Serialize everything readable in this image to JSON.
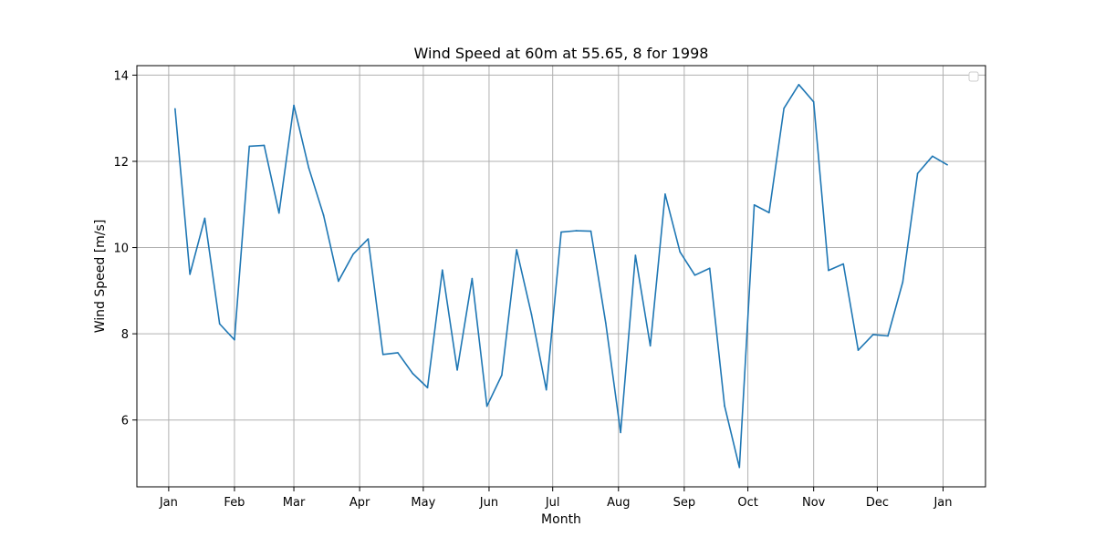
{
  "chart_data": {
    "type": "line",
    "title": "Wind Speed at 60m at 55.65, 8 for 1998",
    "xlabel": "Month",
    "ylabel": "Wind Speed [m/s]",
    "x_ticks": [
      {
        "date": "1998-01-01",
        "label": "Jan"
      },
      {
        "date": "1998-02-01",
        "label": "Feb"
      },
      {
        "date": "1998-03-01",
        "label": "Mar"
      },
      {
        "date": "1998-04-01",
        "label": "Apr"
      },
      {
        "date": "1998-05-01",
        "label": "May"
      },
      {
        "date": "1998-06-01",
        "label": "Jun"
      },
      {
        "date": "1998-07-01",
        "label": "Jul"
      },
      {
        "date": "1998-08-01",
        "label": "Aug"
      },
      {
        "date": "1998-09-01",
        "label": "Sep"
      },
      {
        "date": "1998-10-01",
        "label": "Oct"
      },
      {
        "date": "1998-11-01",
        "label": "Nov"
      },
      {
        "date": "1998-12-01",
        "label": "Dec"
      },
      {
        "date": "1999-01-01",
        "label": "Jan"
      }
    ],
    "y_ticks": [
      6,
      8,
      10,
      12,
      14
    ],
    "xlim": [
      "1997-12-17",
      "1999-01-21"
    ],
    "ylim": [
      4.45,
      14.22
    ],
    "grid": true,
    "legend": {
      "placement": "upper-right",
      "entries": []
    },
    "color": "#1f77b4",
    "series": [
      {
        "x": [
          "1998-01-04",
          "1998-01-11",
          "1998-01-18",
          "1998-01-25",
          "1998-02-01",
          "1998-02-08",
          "1998-02-15",
          "1998-02-22",
          "1998-03-01",
          "1998-03-08",
          "1998-03-15",
          "1998-03-22",
          "1998-03-29",
          "1998-04-05",
          "1998-04-12",
          "1998-04-19",
          "1998-04-26",
          "1998-05-03",
          "1998-05-10",
          "1998-05-17",
          "1998-05-24",
          "1998-05-31",
          "1998-06-07",
          "1998-06-14",
          "1998-06-21",
          "1998-06-28",
          "1998-07-05",
          "1998-07-12",
          "1998-07-19",
          "1998-07-26",
          "1998-08-02",
          "1998-08-09",
          "1998-08-16",
          "1998-08-23",
          "1998-08-30",
          "1998-09-06",
          "1998-09-13",
          "1998-09-20",
          "1998-09-27",
          "1998-10-04",
          "1998-10-11",
          "1998-10-18",
          "1998-10-25",
          "1998-11-01",
          "1998-11-08",
          "1998-11-15",
          "1998-11-22",
          "1998-11-29",
          "1998-12-06",
          "1998-12-13",
          "1998-12-20",
          "1998-12-27",
          "1999-01-03"
        ],
        "values": [
          13.22,
          9.38,
          10.68,
          8.23,
          7.86,
          12.35,
          12.37,
          10.8,
          13.3,
          11.85,
          10.75,
          9.22,
          9.85,
          10.2,
          7.52,
          7.56,
          7.08,
          6.75,
          9.48,
          7.16,
          9.28,
          6.32,
          7.04,
          9.95,
          8.45,
          6.7,
          10.36,
          10.39,
          10.38,
          8.25,
          5.71,
          9.82,
          7.72,
          11.24,
          9.9,
          9.36,
          9.52,
          6.33,
          4.9,
          10.99,
          10.81,
          13.23,
          13.78,
          13.38,
          9.47,
          9.62,
          7.62,
          7.98,
          7.95,
          9.2,
          11.72,
          12.12,
          11.92
        ]
      }
    ]
  }
}
